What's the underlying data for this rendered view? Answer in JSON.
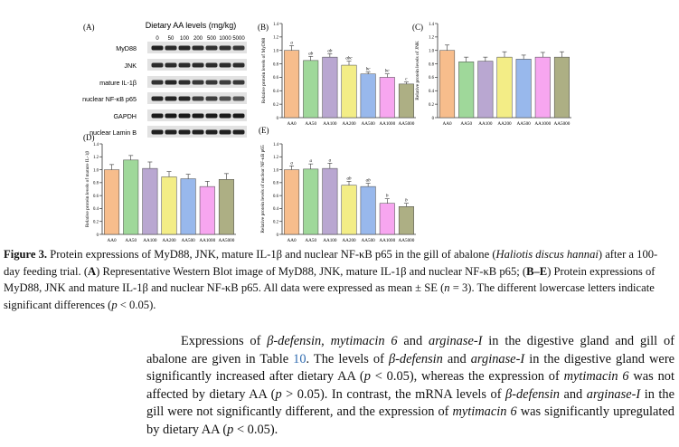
{
  "figure": {
    "panel_a": {
      "letter": "(A)",
      "header": "Dietary AA levels (mg/kg)",
      "doses": [
        "0",
        "50",
        "100",
        "200",
        "500",
        "1000",
        "5000"
      ],
      "rows": [
        {
          "label": "MyD88"
        },
        {
          "label": "JNK"
        },
        {
          "label": "mature IL-1β"
        },
        {
          "label": "nuclear NF-κB p65"
        },
        {
          "label": "GAPDH"
        },
        {
          "label": "nuclear Lamin B"
        }
      ]
    }
  },
  "chart_data": [
    {
      "id": "B",
      "type": "bar",
      "letter": "(B)",
      "ylabel": "Relative protein levels of MyD88",
      "categories": [
        "AA0",
        "AA50",
        "AA100",
        "AA200",
        "AA500",
        "AA1000",
        "AA5000"
      ],
      "values": [
        1.0,
        0.85,
        0.9,
        0.78,
        0.65,
        0.6,
        0.5
      ],
      "errors": [
        0.07,
        0.06,
        0.05,
        0.06,
        0.03,
        0.05,
        0.03
      ],
      "letters": [
        "a",
        "ab",
        "ab",
        "abc",
        "bc",
        "bc",
        "c"
      ],
      "ylim": [
        0,
        1.4
      ],
      "yticks": [
        "0",
        "0.2",
        "0.4",
        "0.6",
        "0.8",
        "1.0",
        "1.2",
        "1.4"
      ]
    },
    {
      "id": "C",
      "type": "bar",
      "letter": "(C)",
      "ylabel": "Relative protein levels of JNK",
      "categories": [
        "AA0",
        "AA50",
        "AA100",
        "AA200",
        "AA500",
        "AA1000",
        "AA5000"
      ],
      "values": [
        1.0,
        0.83,
        0.84,
        0.9,
        0.87,
        0.9,
        0.9
      ],
      "errors": [
        0.08,
        0.07,
        0.06,
        0.08,
        0.06,
        0.07,
        0.08
      ],
      "letters": [
        "",
        "",
        "",
        "",
        "",
        "",
        ""
      ],
      "ylim": [
        0,
        1.4
      ],
      "yticks": [
        "0",
        "0.2",
        "0.4",
        "0.6",
        "0.8",
        "1.0",
        "1.2",
        "1.4"
      ]
    },
    {
      "id": "D",
      "type": "bar",
      "letter": "(D)",
      "ylabel": "Relative protein levels of mature IL-1β",
      "categories": [
        "AA0",
        "AA50",
        "AA100",
        "AA200",
        "AA500",
        "AA1000",
        "AA5000"
      ],
      "values": [
        1.0,
        1.15,
        1.02,
        0.89,
        0.86,
        0.74,
        0.85
      ],
      "errors": [
        0.08,
        0.07,
        0.1,
        0.08,
        0.07,
        0.08,
        0.09
      ],
      "letters": [
        "",
        "",
        "",
        "",
        "",
        "",
        ""
      ],
      "ylim": [
        0,
        1.4
      ],
      "yticks": [
        "0",
        "0.2",
        "0.4",
        "0.6",
        "0.8",
        "1.0",
        "1.2",
        "1.4"
      ]
    },
    {
      "id": "E",
      "type": "bar",
      "letter": "(E)",
      "ylabel": "Relative protein levels of nuclear NF-κB p65",
      "categories": [
        "AA0",
        "AA50",
        "AA100",
        "AA200",
        "AA500",
        "AA1000",
        "AA5000"
      ],
      "values": [
        1.0,
        1.01,
        1.02,
        0.76,
        0.74,
        0.48,
        0.43
      ],
      "errors": [
        0.06,
        0.08,
        0.08,
        0.06,
        0.05,
        0.07,
        0.05
      ],
      "letters": [
        "a",
        "a",
        "a",
        "ab",
        "ab",
        "b",
        "b"
      ],
      "ylim": [
        0,
        1.4
      ],
      "yticks": [
        "0",
        "0.2",
        "0.4",
        "0.6",
        "0.8",
        "1.0",
        "1.2",
        "1.4"
      ]
    }
  ],
  "colors": {
    "bars": [
      "#f7bd8c",
      "#9fd89a",
      "#b9a7d1",
      "#f3ed86",
      "#98b8ec",
      "#f7a6f0",
      "#adaf84"
    ],
    "edge": "#444444"
  },
  "caption": {
    "label": "Figure 3.",
    "t1": " Protein expressions of MyD88, JNK, mature IL-1β and nuclear NF-κB p65 in the gill of abalone (",
    "species": "Haliotis discus hannai",
    "t2": ") after a 100-day feeding trial. (",
    "a": "A",
    "t3": ") Representative Western Blot image of MyD88, JNK, mature IL-1β and nuclear NF-κB p65; (",
    "be": "B–E",
    "t4": ") Protein expressions of MyD88, JNK and mature IL-1β and nuclear NF-κB p65. All data were expressed as mean ± SE (",
    "n": "n",
    "t5": " = 3). The different lowercase letters indicate significant differences (",
    "p": "p",
    "t6": " < 0.05)."
  },
  "body": {
    "s1": "Expressions of ",
    "g1": "β-defensin",
    "s2": ", ",
    "g2": "mytimacin 6",
    "s3": " and ",
    "g3": "arginase-I",
    "s4": " in the digestive gland and gill of abalone are given in Table ",
    "table_ref": "10",
    "s5": ". The levels of ",
    "g4": "β-defensin",
    "s6": " and ",
    "g5": "arginase-I",
    "s7": " in the digestive gland were significantly increased after dietary AA (",
    "p1": "p",
    "s8": " < 0.05), whereas the expression of ",
    "g6": "mytimacin 6",
    "s9": " was not affected by dietary AA (",
    "p2": "p",
    "s10": " > 0.05). In contrast, the mRNA levels of ",
    "g7": "β-defensin",
    "s11": " and ",
    "g8": "arginase-I",
    "s12": " in the gill were not significantly different, and the expression of ",
    "g9": "mytimacin 6",
    "s13": " was significantly upregulated by dietary AA (",
    "p3": "p",
    "s14": " < 0.05)."
  }
}
